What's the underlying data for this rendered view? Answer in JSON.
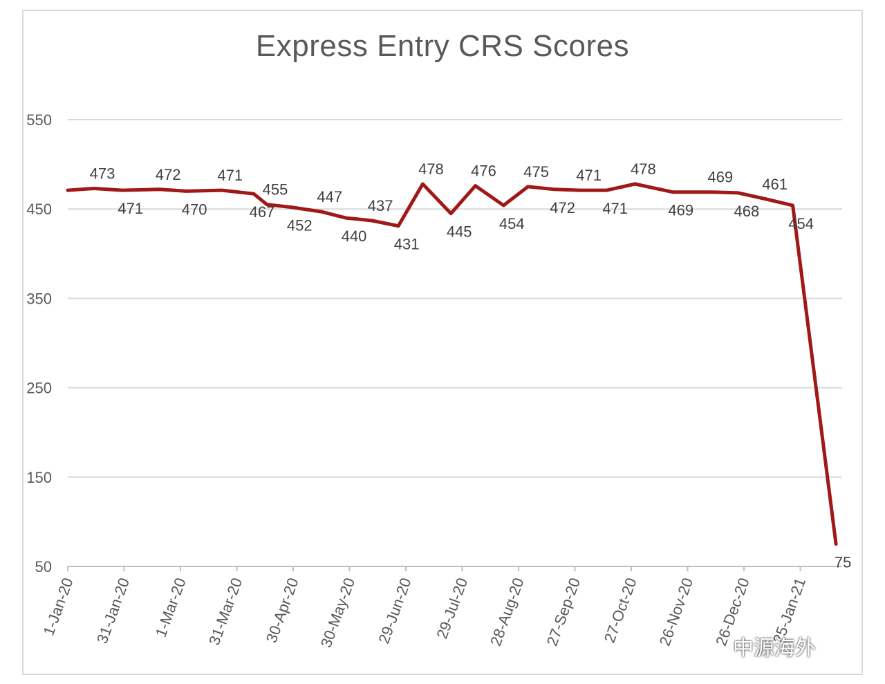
{
  "chart_data": {
    "type": "line",
    "title": "Express Entry CRS Scores",
    "xlabel": "",
    "ylabel": "",
    "ylim": [
      50,
      550
    ],
    "yticks": [
      50,
      150,
      250,
      350,
      450,
      550
    ],
    "grid": true,
    "legend": "none",
    "line_color": "#a01818",
    "x_tick_labels": [
      "1-Jan-20",
      "31-Jan-20",
      "1-Mar-20",
      "31-Mar-20",
      "30-Apr-20",
      "30-May-20",
      "29-Jun-20",
      "29-Jul-20",
      "28-Aug-20",
      "27-Sep-20",
      "27-Oct-20",
      "26-Nov-20",
      "26-Dec-20",
      "25-Jan-21"
    ],
    "x": [
      "2020-01-01",
      "2020-01-15",
      "2020-01-30",
      "2020-02-19",
      "2020-03-04",
      "2020-03-23",
      "2020-04-09",
      "2020-04-16",
      "2020-04-29",
      "2020-05-15",
      "2020-05-28",
      "2020-06-11",
      "2020-06-25",
      "2020-07-08",
      "2020-07-23",
      "2020-08-05",
      "2020-08-20",
      "2020-09-02",
      "2020-09-16",
      "2020-09-30",
      "2020-10-14",
      "2020-10-29",
      "2020-11-18",
      "2020-12-09",
      "2020-12-23",
      "2021-01-07",
      "2021-01-21",
      "2021-02-13"
    ],
    "series": [
      {
        "name": "",
        "values": [
          471,
          473,
          471,
          472,
          470,
          471,
          467,
          455,
          452,
          447,
          440,
          437,
          431,
          478,
          445,
          476,
          454,
          475,
          472,
          471,
          471,
          478,
          469,
          469,
          468,
          461,
          454,
          75
        ]
      }
    ],
    "data_labels": [
      "471",
      "473",
      "471",
      "472",
      "470",
      "471",
      "467",
      "455",
      "452",
      "447",
      "440",
      "437",
      "431",
      "478",
      "445",
      "476",
      "454",
      "475",
      "472",
      "471",
      "471",
      "478",
      "469",
      "469",
      "468",
      "461",
      "454",
      "75"
    ]
  },
  "watermark": "中源海外"
}
